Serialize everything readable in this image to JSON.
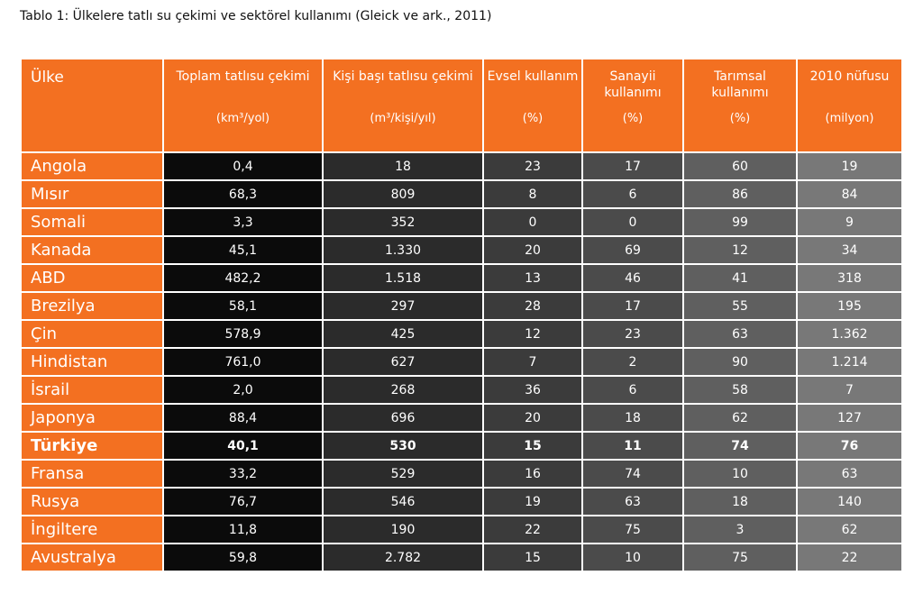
{
  "title": "Tablo 1: Ülkelere tatlı su çekimi ve sektörel kullanımı (Gleick ve ark., 2011)",
  "table": {
    "columns": [
      {
        "label": "Ülke"
      },
      {
        "label": "Toplam tatlısu çekimi",
        "unit": "(km³/yol)"
      },
      {
        "label": "Kişi başı tatlısu çekimi",
        "unit": "(m³/kişi/yıl)"
      },
      {
        "label": "Evsel kullanım",
        "unit": "(%)"
      },
      {
        "label": "Sanayii kullanımı",
        "unit": "(%)"
      },
      {
        "label": "Tarımsal kullanımı",
        "unit": "(%)"
      },
      {
        "label": "2010 nüfusu",
        "unit": "(milyon)"
      }
    ],
    "rows": [
      [
        "Angola",
        "0,4",
        "18",
        "23",
        "17",
        "60",
        "19"
      ],
      [
        "Mısır",
        "68,3",
        "809",
        "8",
        "6",
        "86",
        "84"
      ],
      [
        "Somali",
        "3,3",
        "352",
        "0",
        "0",
        "99",
        "9"
      ],
      [
        "Kanada",
        "45,1",
        "1.330",
        "20",
        "69",
        "12",
        "34"
      ],
      [
        "ABD",
        "482,2",
        "1.518",
        "13",
        "46",
        "41",
        "318"
      ],
      [
        "Brezilya",
        "58,1",
        "297",
        "28",
        "17",
        "55",
        "195"
      ],
      [
        "Çin",
        "578,9",
        "425",
        "12",
        "23",
        "63",
        "1.362"
      ],
      [
        "Hindistan",
        "761,0",
        "627",
        "7",
        "2",
        "90",
        "1.214"
      ],
      [
        "İsrail",
        "2,0",
        "268",
        "36",
        "6",
        "58",
        "7"
      ],
      [
        "Japonya",
        "88,4",
        "696",
        "20",
        "18",
        "62",
        "127"
      ],
      [
        "Türkiye",
        "40,1",
        "530",
        "15",
        "11",
        "74",
        "76"
      ],
      [
        "Fransa",
        "33,2",
        "529",
        "16",
        "74",
        "10",
        "63"
      ],
      [
        "Rusya",
        "76,7",
        "546",
        "19",
        "63",
        "18",
        "140"
      ],
      [
        "İngiltere",
        "11,8",
        "190",
        "22",
        "75",
        "3",
        "62"
      ],
      [
        "Avustralya",
        "59,8",
        "2.782",
        "15",
        "10",
        "75",
        "22"
      ]
    ]
  }
}
